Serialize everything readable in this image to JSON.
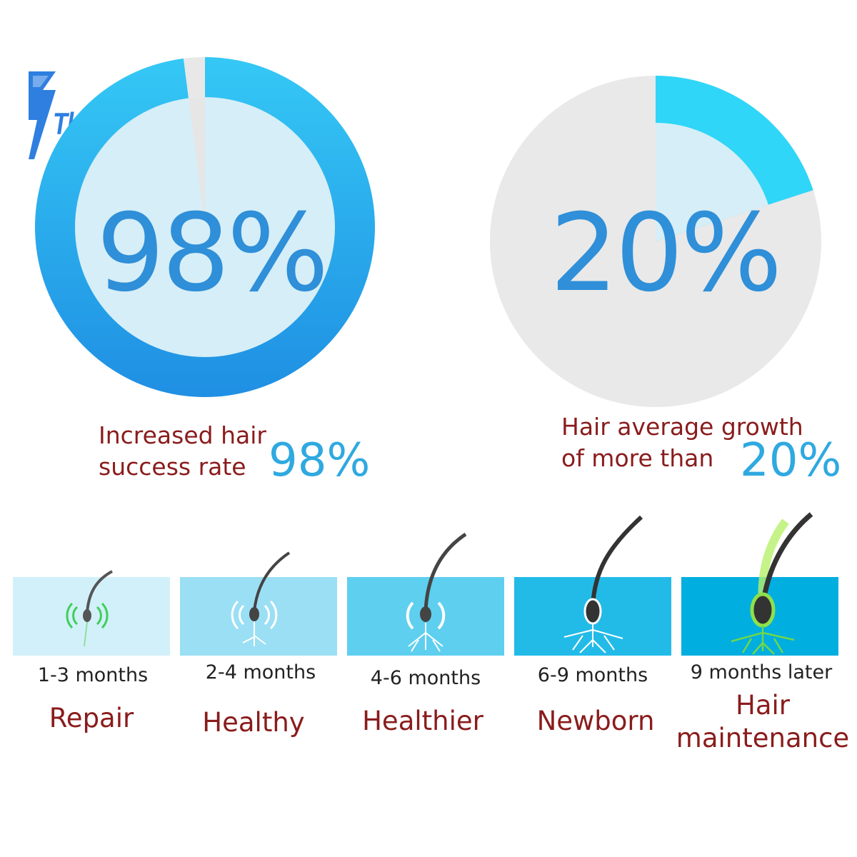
{
  "brand": {
    "name": "ThanksBuyer"
  },
  "chart_data": [
    {
      "type": "pie",
      "title": "98%",
      "slices": [
        {
          "name": "filled",
          "value": 98
        },
        {
          "name": "remaining",
          "value": 2
        }
      ],
      "caption": {
        "line1": "Increased hair",
        "line2": "success rate",
        "value_label": "98%"
      },
      "colors": {
        "arc": "#2ab4f0",
        "arc_dark": "#1f8fe3",
        "inner": "#d6eef7",
        "remaining": "#e8e8e8"
      }
    },
    {
      "type": "pie",
      "title": "20%",
      "slices": [
        {
          "name": "filled",
          "value": 20
        },
        {
          "name": "remaining",
          "value": 80
        }
      ],
      "caption": {
        "line1": "Hair average growth",
        "line2": "of more than",
        "value_label": "20%"
      },
      "colors": {
        "arc": "#2fd6f7",
        "inner": "#d6eef7",
        "remaining": "#e9e9e9"
      }
    }
  ],
  "stages": [
    {
      "time": "1-3 months",
      "label": "Repair",
      "label2": "",
      "bg": "#d2f0f9",
      "icon": "hair-follicle-waves-icon"
    },
    {
      "time": "2-4 months",
      "label": "Healthy",
      "label2": "",
      "bg": "#9bdff4",
      "icon": "hair-follicle-waves-icon"
    },
    {
      "time": "4-6 months",
      "label": "Healthier",
      "label2": "",
      "bg": "#5ecfef",
      "icon": "hair-follicle-waves-icon"
    },
    {
      "time": "6-9 months",
      "label": "Newborn",
      "label2": "",
      "bg": "#22bbe8",
      "icon": "hair-root-icon"
    },
    {
      "time": "9 months later",
      "label": "Hair",
      "label2": "maintenance",
      "bg": "#00aedf",
      "icon": "hair-root-glow-icon"
    }
  ]
}
